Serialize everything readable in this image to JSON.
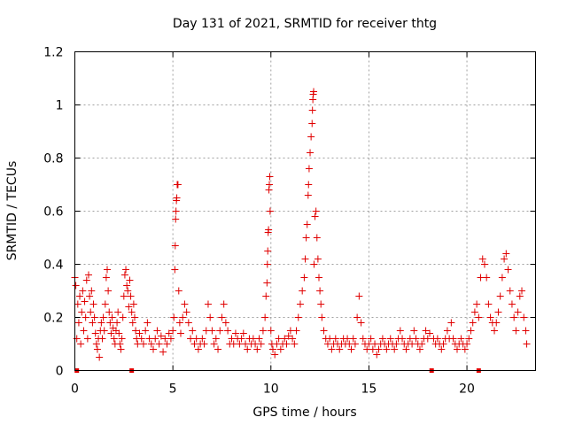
{
  "chart_data": {
    "type": "scatter",
    "title": "Day 131 of 2021, SRMTID for receiver thtg",
    "xlabel": "GPS time / hours",
    "ylabel": "SRMTID / TECUs",
    "xlim": [
      0,
      23.5
    ],
    "ylim": [
      0,
      1.2
    ],
    "xticks": [
      0,
      5,
      10,
      15,
      20
    ],
    "xtick_labels": [
      "0",
      "5",
      "10",
      "15",
      "20"
    ],
    "yticks": [
      0,
      0.2,
      0.4,
      0.6,
      0.8,
      1.0,
      1.2
    ],
    "ytick_labels": [
      "0",
      "0.2",
      "0.4",
      "0.6",
      "0.8",
      "1",
      "1.2"
    ],
    "grid": true,
    "marker": "+",
    "series": [
      {
        "name": "SRMTID",
        "color": "#e00000",
        "points": [
          [
            0.0,
            0.35
          ],
          [
            0.05,
            0.32
          ],
          [
            0.1,
            0.12
          ],
          [
            0.15,
            0.25
          ],
          [
            0.2,
            0.18
          ],
          [
            0.25,
            0.28
          ],
          [
            0.3,
            0.1
          ],
          [
            0.35,
            0.22
          ],
          [
            0.4,
            0.3
          ],
          [
            0.45,
            0.15
          ],
          [
            0.5,
            0.26
          ],
          [
            0.55,
            0.2
          ],
          [
            0.6,
            0.34
          ],
          [
            0.65,
            0.12
          ],
          [
            0.7,
            0.36
          ],
          [
            0.75,
            0.28
          ],
          [
            0.8,
            0.22
          ],
          [
            0.85,
            0.3
          ],
          [
            0.9,
            0.18
          ],
          [
            0.95,
            0.25
          ],
          [
            1.0,
            0.2
          ],
          [
            1.05,
            0.14
          ],
          [
            1.1,
            0.1
          ],
          [
            1.15,
            0.08
          ],
          [
            1.2,
            0.12
          ],
          [
            1.25,
            0.05
          ],
          [
            1.3,
            0.15
          ],
          [
            1.35,
            0.18
          ],
          [
            1.4,
            0.12
          ],
          [
            1.45,
            0.2
          ],
          [
            1.5,
            0.15
          ],
          [
            1.55,
            0.25
          ],
          [
            1.6,
            0.35
          ],
          [
            1.65,
            0.38
          ],
          [
            1.7,
            0.3
          ],
          [
            1.75,
            0.22
          ],
          [
            1.8,
            0.18
          ],
          [
            1.85,
            0.14
          ],
          [
            1.9,
            0.2
          ],
          [
            1.95,
            0.16
          ],
          [
            2.0,
            0.12
          ],
          [
            2.05,
            0.1
          ],
          [
            2.1,
            0.15
          ],
          [
            2.15,
            0.18
          ],
          [
            2.2,
            0.22
          ],
          [
            2.25,
            0.14
          ],
          [
            2.3,
            0.1
          ],
          [
            2.35,
            0.08
          ],
          [
            2.4,
            0.12
          ],
          [
            2.45,
            0.2
          ],
          [
            2.5,
            0.28
          ],
          [
            2.55,
            0.36
          ],
          [
            2.6,
            0.38
          ],
          [
            2.65,
            0.32
          ],
          [
            2.7,
            0.3
          ],
          [
            2.75,
            0.24
          ],
          [
            2.8,
            0.34
          ],
          [
            2.85,
            0.28
          ],
          [
            2.9,
            0.22
          ],
          [
            2.95,
            0.18
          ],
          [
            3.0,
            0.25
          ],
          [
            3.05,
            0.2
          ],
          [
            3.1,
            0.15
          ],
          [
            3.15,
            0.12
          ],
          [
            3.2,
            0.1
          ],
          [
            3.3,
            0.14
          ],
          [
            3.4,
            0.12
          ],
          [
            3.5,
            0.1
          ],
          [
            3.6,
            0.15
          ],
          [
            3.7,
            0.18
          ],
          [
            3.8,
            0.12
          ],
          [
            3.9,
            0.1
          ],
          [
            4.0,
            0.08
          ],
          [
            4.1,
            0.12
          ],
          [
            4.2,
            0.15
          ],
          [
            4.3,
            0.1
          ],
          [
            4.4,
            0.13
          ],
          [
            4.5,
            0.07
          ],
          [
            4.6,
            0.12
          ],
          [
            4.7,
            0.1
          ],
          [
            4.8,
            0.14
          ],
          [
            4.9,
            0.12
          ],
          [
            5.0,
            0.15
          ],
          [
            5.05,
            0.2
          ],
          [
            5.1,
            0.38
          ],
          [
            5.12,
            0.47
          ],
          [
            5.14,
            0.57
          ],
          [
            5.16,
            0.6
          ],
          [
            5.18,
            0.64
          ],
          [
            5.2,
            0.65
          ],
          [
            5.22,
            0.7
          ],
          [
            5.24,
            0.7
          ],
          [
            5.26,
            0.7
          ],
          [
            5.3,
            0.3
          ],
          [
            5.35,
            0.18
          ],
          [
            5.4,
            0.14
          ],
          [
            5.5,
            0.2
          ],
          [
            5.6,
            0.25
          ],
          [
            5.7,
            0.22
          ],
          [
            5.8,
            0.18
          ],
          [
            5.9,
            0.12
          ],
          [
            6.0,
            0.15
          ],
          [
            6.1,
            0.1
          ],
          [
            6.2,
            0.12
          ],
          [
            6.3,
            0.08
          ],
          [
            6.4,
            0.1
          ],
          [
            6.5,
            0.12
          ],
          [
            6.6,
            0.1
          ],
          [
            6.7,
            0.15
          ],
          [
            6.8,
            0.25
          ],
          [
            6.9,
            0.2
          ],
          [
            7.0,
            0.15
          ],
          [
            7.1,
            0.1
          ],
          [
            7.2,
            0.12
          ],
          [
            7.3,
            0.08
          ],
          [
            7.4,
            0.15
          ],
          [
            7.5,
            0.2
          ],
          [
            7.6,
            0.25
          ],
          [
            7.7,
            0.18
          ],
          [
            7.8,
            0.15
          ],
          [
            7.9,
            0.1
          ],
          [
            8.0,
            0.12
          ],
          [
            8.1,
            0.1
          ],
          [
            8.2,
            0.14
          ],
          [
            8.3,
            0.12
          ],
          [
            8.4,
            0.1
          ],
          [
            8.5,
            0.12
          ],
          [
            8.6,
            0.14
          ],
          [
            8.7,
            0.1
          ],
          [
            8.8,
            0.08
          ],
          [
            8.9,
            0.12
          ],
          [
            9.0,
            0.1
          ],
          [
            9.1,
            0.12
          ],
          [
            9.2,
            0.1
          ],
          [
            9.3,
            0.08
          ],
          [
            9.4,
            0.12
          ],
          [
            9.5,
            0.1
          ],
          [
            9.6,
            0.15
          ],
          [
            9.7,
            0.2
          ],
          [
            9.75,
            0.28
          ],
          [
            9.8,
            0.33
          ],
          [
            9.82,
            0.4
          ],
          [
            9.84,
            0.45
          ],
          [
            9.86,
            0.52
          ],
          [
            9.88,
            0.53
          ],
          [
            9.9,
            0.68
          ],
          [
            9.92,
            0.7
          ],
          [
            9.94,
            0.73
          ],
          [
            9.96,
            0.6
          ],
          [
            10.0,
            0.15
          ],
          [
            10.05,
            0.1
          ],
          [
            10.1,
            0.08
          ],
          [
            10.2,
            0.06
          ],
          [
            10.3,
            0.1
          ],
          [
            10.4,
            0.12
          ],
          [
            10.5,
            0.08
          ],
          [
            10.6,
            0.1
          ],
          [
            10.7,
            0.12
          ],
          [
            10.8,
            0.1
          ],
          [
            10.9,
            0.13
          ],
          [
            11.0,
            0.15
          ],
          [
            11.1,
            0.12
          ],
          [
            11.2,
            0.1
          ],
          [
            11.3,
            0.15
          ],
          [
            11.4,
            0.2
          ],
          [
            11.5,
            0.25
          ],
          [
            11.6,
            0.3
          ],
          [
            11.7,
            0.35
          ],
          [
            11.75,
            0.42
          ],
          [
            11.8,
            0.5
          ],
          [
            11.85,
            0.55
          ],
          [
            11.9,
            0.66
          ],
          [
            11.92,
            0.7
          ],
          [
            11.95,
            0.76
          ],
          [
            12.0,
            0.82
          ],
          [
            12.05,
            0.88
          ],
          [
            12.1,
            0.93
          ],
          [
            12.12,
            0.98
          ],
          [
            12.14,
            1.02
          ],
          [
            12.16,
            1.04
          ],
          [
            12.18,
            1.05
          ],
          [
            12.2,
            0.4
          ],
          [
            12.25,
            0.58
          ],
          [
            12.3,
            0.6
          ],
          [
            12.35,
            0.5
          ],
          [
            12.4,
            0.42
          ],
          [
            12.45,
            0.35
          ],
          [
            12.5,
            0.3
          ],
          [
            12.55,
            0.25
          ],
          [
            12.6,
            0.2
          ],
          [
            12.7,
            0.15
          ],
          [
            12.8,
            0.12
          ],
          [
            12.9,
            0.1
          ],
          [
            13.0,
            0.12
          ],
          [
            13.1,
            0.08
          ],
          [
            13.2,
            0.1
          ],
          [
            13.3,
            0.12
          ],
          [
            13.4,
            0.1
          ],
          [
            13.5,
            0.08
          ],
          [
            13.6,
            0.1
          ],
          [
            13.7,
            0.12
          ],
          [
            13.8,
            0.1
          ],
          [
            13.9,
            0.12
          ],
          [
            14.0,
            0.1
          ],
          [
            14.1,
            0.08
          ],
          [
            14.2,
            0.12
          ],
          [
            14.3,
            0.1
          ],
          [
            14.4,
            0.2
          ],
          [
            14.5,
            0.28
          ],
          [
            14.6,
            0.18
          ],
          [
            14.7,
            0.12
          ],
          [
            14.8,
            0.1
          ],
          [
            14.9,
            0.08
          ],
          [
            15.0,
            0.1
          ],
          [
            15.1,
            0.12
          ],
          [
            15.2,
            0.08
          ],
          [
            15.3,
            0.1
          ],
          [
            15.4,
            0.06
          ],
          [
            15.5,
            0.08
          ],
          [
            15.6,
            0.1
          ],
          [
            15.7,
            0.12
          ],
          [
            15.8,
            0.1
          ],
          [
            15.9,
            0.08
          ],
          [
            16.0,
            0.1
          ],
          [
            16.1,
            0.12
          ],
          [
            16.2,
            0.1
          ],
          [
            16.3,
            0.08
          ],
          [
            16.4,
            0.1
          ],
          [
            16.5,
            0.12
          ],
          [
            16.6,
            0.15
          ],
          [
            16.7,
            0.12
          ],
          [
            16.8,
            0.1
          ],
          [
            16.9,
            0.08
          ],
          [
            17.0,
            0.1
          ],
          [
            17.1,
            0.12
          ],
          [
            17.2,
            0.1
          ],
          [
            17.3,
            0.15
          ],
          [
            17.4,
            0.12
          ],
          [
            17.5,
            0.1
          ],
          [
            17.6,
            0.08
          ],
          [
            17.7,
            0.1
          ],
          [
            17.8,
            0.12
          ],
          [
            17.9,
            0.15
          ],
          [
            18.0,
            0.12
          ],
          [
            18.1,
            0.14
          ],
          [
            18.3,
            0.12
          ],
          [
            18.4,
            0.1
          ],
          [
            18.5,
            0.12
          ],
          [
            18.6,
            0.1
          ],
          [
            18.7,
            0.08
          ],
          [
            18.8,
            0.1
          ],
          [
            18.9,
            0.12
          ],
          [
            19.0,
            0.15
          ],
          [
            19.1,
            0.12
          ],
          [
            19.2,
            0.18
          ],
          [
            19.3,
            0.12
          ],
          [
            19.4,
            0.1
          ],
          [
            19.5,
            0.08
          ],
          [
            19.6,
            0.1
          ],
          [
            19.7,
            0.12
          ],
          [
            19.8,
            0.1
          ],
          [
            19.9,
            0.08
          ],
          [
            20.0,
            0.1
          ],
          [
            20.1,
            0.12
          ],
          [
            20.2,
            0.15
          ],
          [
            20.3,
            0.18
          ],
          [
            20.4,
            0.22
          ],
          [
            20.5,
            0.25
          ],
          [
            20.6,
            0.2
          ],
          [
            20.7,
            0.35
          ],
          [
            20.8,
            0.42
          ],
          [
            20.9,
            0.4
          ],
          [
            21.0,
            0.35
          ],
          [
            21.1,
            0.25
          ],
          [
            21.2,
            0.2
          ],
          [
            21.3,
            0.18
          ],
          [
            21.4,
            0.15
          ],
          [
            21.5,
            0.18
          ],
          [
            21.6,
            0.22
          ],
          [
            21.7,
            0.28
          ],
          [
            21.8,
            0.35
          ],
          [
            21.9,
            0.42
          ],
          [
            22.0,
            0.44
          ],
          [
            22.1,
            0.38
          ],
          [
            22.2,
            0.3
          ],
          [
            22.3,
            0.25
          ],
          [
            22.4,
            0.2
          ],
          [
            22.5,
            0.15
          ],
          [
            22.6,
            0.22
          ],
          [
            22.7,
            0.28
          ],
          [
            22.8,
            0.3
          ],
          [
            22.9,
            0.2
          ],
          [
            23.0,
            0.15
          ],
          [
            23.05,
            0.1
          ]
        ]
      }
    ],
    "data_gaps_x": [
      0.1,
      2.9,
      18.2,
      20.6
    ]
  }
}
